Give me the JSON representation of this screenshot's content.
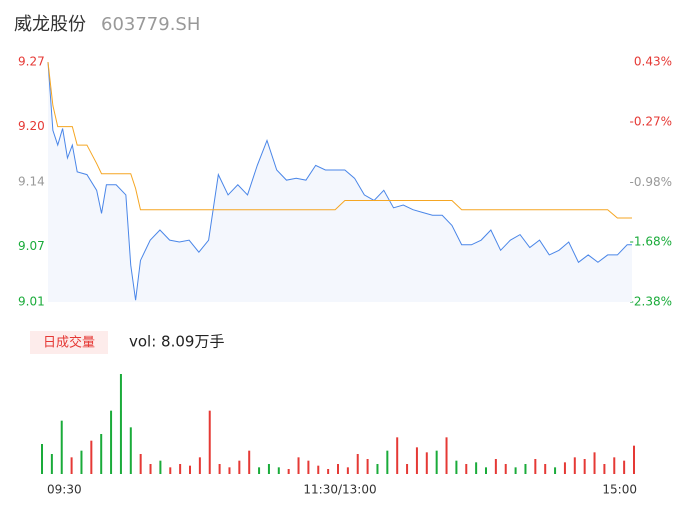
{
  "header": {
    "title": "威龙股份",
    "code": "603779.SH"
  },
  "chart_data": [
    {
      "type": "line",
      "x": [
        0,
        2,
        4,
        6,
        8,
        10,
        12,
        16,
        20,
        22,
        24,
        28,
        32,
        34,
        36,
        38,
        42,
        46,
        50,
        54,
        58,
        62,
        66,
        70,
        74,
        78,
        82,
        86,
        90,
        94,
        98,
        102,
        106,
        110,
        114,
        118,
        122,
        126,
        130,
        134,
        138,
        142,
        146,
        150,
        154,
        158,
        162,
        166,
        170,
        174,
        178,
        182,
        186,
        190,
        194,
        198,
        202,
        206,
        210,
        214,
        218,
        222,
        226,
        230,
        234,
        238,
        240
      ],
      "xlim": [
        0,
        240
      ],
      "xticks": [
        {
          "value": 0,
          "label": "09:30"
        },
        {
          "value": 120,
          "label": "11:30/13:00"
        },
        {
          "value": 240,
          "label": "15:00"
        }
      ],
      "ylim": [
        9.01,
        9.27
      ],
      "yticks": [
        9.27,
        {
          "value": 9.2,
          "label": "9.20"
        },
        9.14,
        9.07,
        9.01
      ],
      "y2lim": [
        -2.38,
        0.43
      ],
      "y2ticks": [
        {
          "value": 0.43,
          "label": "0.43%"
        },
        {
          "value": -0.27,
          "label": "-0.27%"
        },
        {
          "value": -0.98,
          "label": "-0.98%"
        },
        {
          "value": -1.68,
          "label": "-1.68%"
        },
        {
          "value": -2.38,
          "label": "-2.38%"
        }
      ],
      "up_color": "#e53935",
      "flat_color": "#999999",
      "down_color": "#1aab3a",
      "series": [
        {
          "color": "#4a86e8",
          "values": [
            9.27,
            9.196,
            9.18,
            9.198,
            9.166,
            9.18,
            9.151,
            9.148,
            9.131,
            9.106,
            9.137,
            9.137,
            9.126,
            9.05,
            9.012,
            9.055,
            9.077,
            9.088,
            9.077,
            9.075,
            9.077,
            9.064,
            9.077,
            9.148,
            9.126,
            9.137,
            9.126,
            9.158,
            9.185,
            9.153,
            9.142,
            9.144,
            9.142,
            9.158,
            9.153,
            9.153,
            9.153,
            9.144,
            9.126,
            9.12,
            9.131,
            9.112,
            9.115,
            9.11,
            9.107,
            9.104,
            9.104,
            9.093,
            9.072,
            9.072,
            9.077,
            9.088,
            9.066,
            9.077,
            9.083,
            9.069,
            9.077,
            9.061,
            9.066,
            9.075,
            9.053,
            9.061,
            9.053,
            9.061,
            9.061,
            9.072,
            9.072
          ]
        },
        {
          "color": "#f5a623",
          "values": [
            9.27,
            9.223,
            9.2,
            9.2,
            9.2,
            9.2,
            9.18,
            9.18,
            9.16,
            9.149,
            9.149,
            9.149,
            9.149,
            9.149,
            9.133,
            9.11,
            9.11,
            9.11,
            9.11,
            9.11,
            9.11,
            9.11,
            9.11,
            9.11,
            9.11,
            9.11,
            9.11,
            9.11,
            9.11,
            9.11,
            9.11,
            9.11,
            9.11,
            9.11,
            9.11,
            9.11,
            9.12,
            9.12,
            9.12,
            9.12,
            9.12,
            9.12,
            9.12,
            9.12,
            9.12,
            9.12,
            9.12,
            9.12,
            9.11,
            9.11,
            9.11,
            9.11,
            9.11,
            9.11,
            9.11,
            9.11,
            9.11,
            9.11,
            9.11,
            9.11,
            9.11,
            9.11,
            9.11,
            9.11,
            9.101,
            9.101,
            9.101
          ]
        }
      ]
    },
    {
      "type": "bar",
      "legend": "日成交量",
      "total": "vol: 8.09万手",
      "x": [
        0,
        4,
        8,
        12,
        16,
        20,
        24,
        28,
        32,
        36,
        40,
        44,
        48,
        52,
        56,
        60,
        64,
        68,
        72,
        76,
        80,
        84,
        88,
        92,
        96,
        100,
        104,
        108,
        112,
        116,
        120,
        124,
        128,
        132,
        136,
        140,
        144,
        148,
        152,
        156,
        160,
        164,
        168,
        172,
        176,
        180,
        184,
        188,
        192,
        196,
        200,
        204,
        208,
        212,
        216,
        220,
        224,
        228,
        232,
        236,
        240
      ],
      "xlim": [
        0,
        240
      ],
      "series": [
        {
          "color": "#e53935",
          "values": [
            null,
            null,
            null,
            500,
            null,
            1000,
            null,
            null,
            null,
            null,
            600,
            300,
            null,
            200,
            300,
            250,
            500,
            1900,
            300,
            200,
            400,
            700,
            null,
            null,
            null,
            150,
            500,
            400,
            250,
            150,
            300,
            200,
            600,
            450,
            null,
            null,
            1100,
            300,
            800,
            650,
            null,
            1100,
            null,
            300,
            null,
            null,
            450,
            300,
            null,
            null,
            450,
            300,
            null,
            350,
            500,
            450,
            650,
            300,
            500,
            400,
            850
          ]
        },
        {
          "color": "#1aab3a",
          "values": [
            900,
            600,
            1600,
            null,
            700,
            null,
            1200,
            1900,
            3000,
            1400,
            null,
            null,
            400,
            null,
            null,
            null,
            null,
            null,
            null,
            null,
            null,
            null,
            200,
            300,
            200,
            null,
            null,
            null,
            null,
            null,
            null,
            null,
            null,
            null,
            300,
            700,
            null,
            null,
            null,
            null,
            700,
            null,
            400,
            null,
            350,
            200,
            null,
            null,
            200,
            300,
            null,
            null,
            200,
            null,
            null,
            null,
            null,
            null,
            null,
            null,
            null
          ]
        }
      ]
    }
  ]
}
